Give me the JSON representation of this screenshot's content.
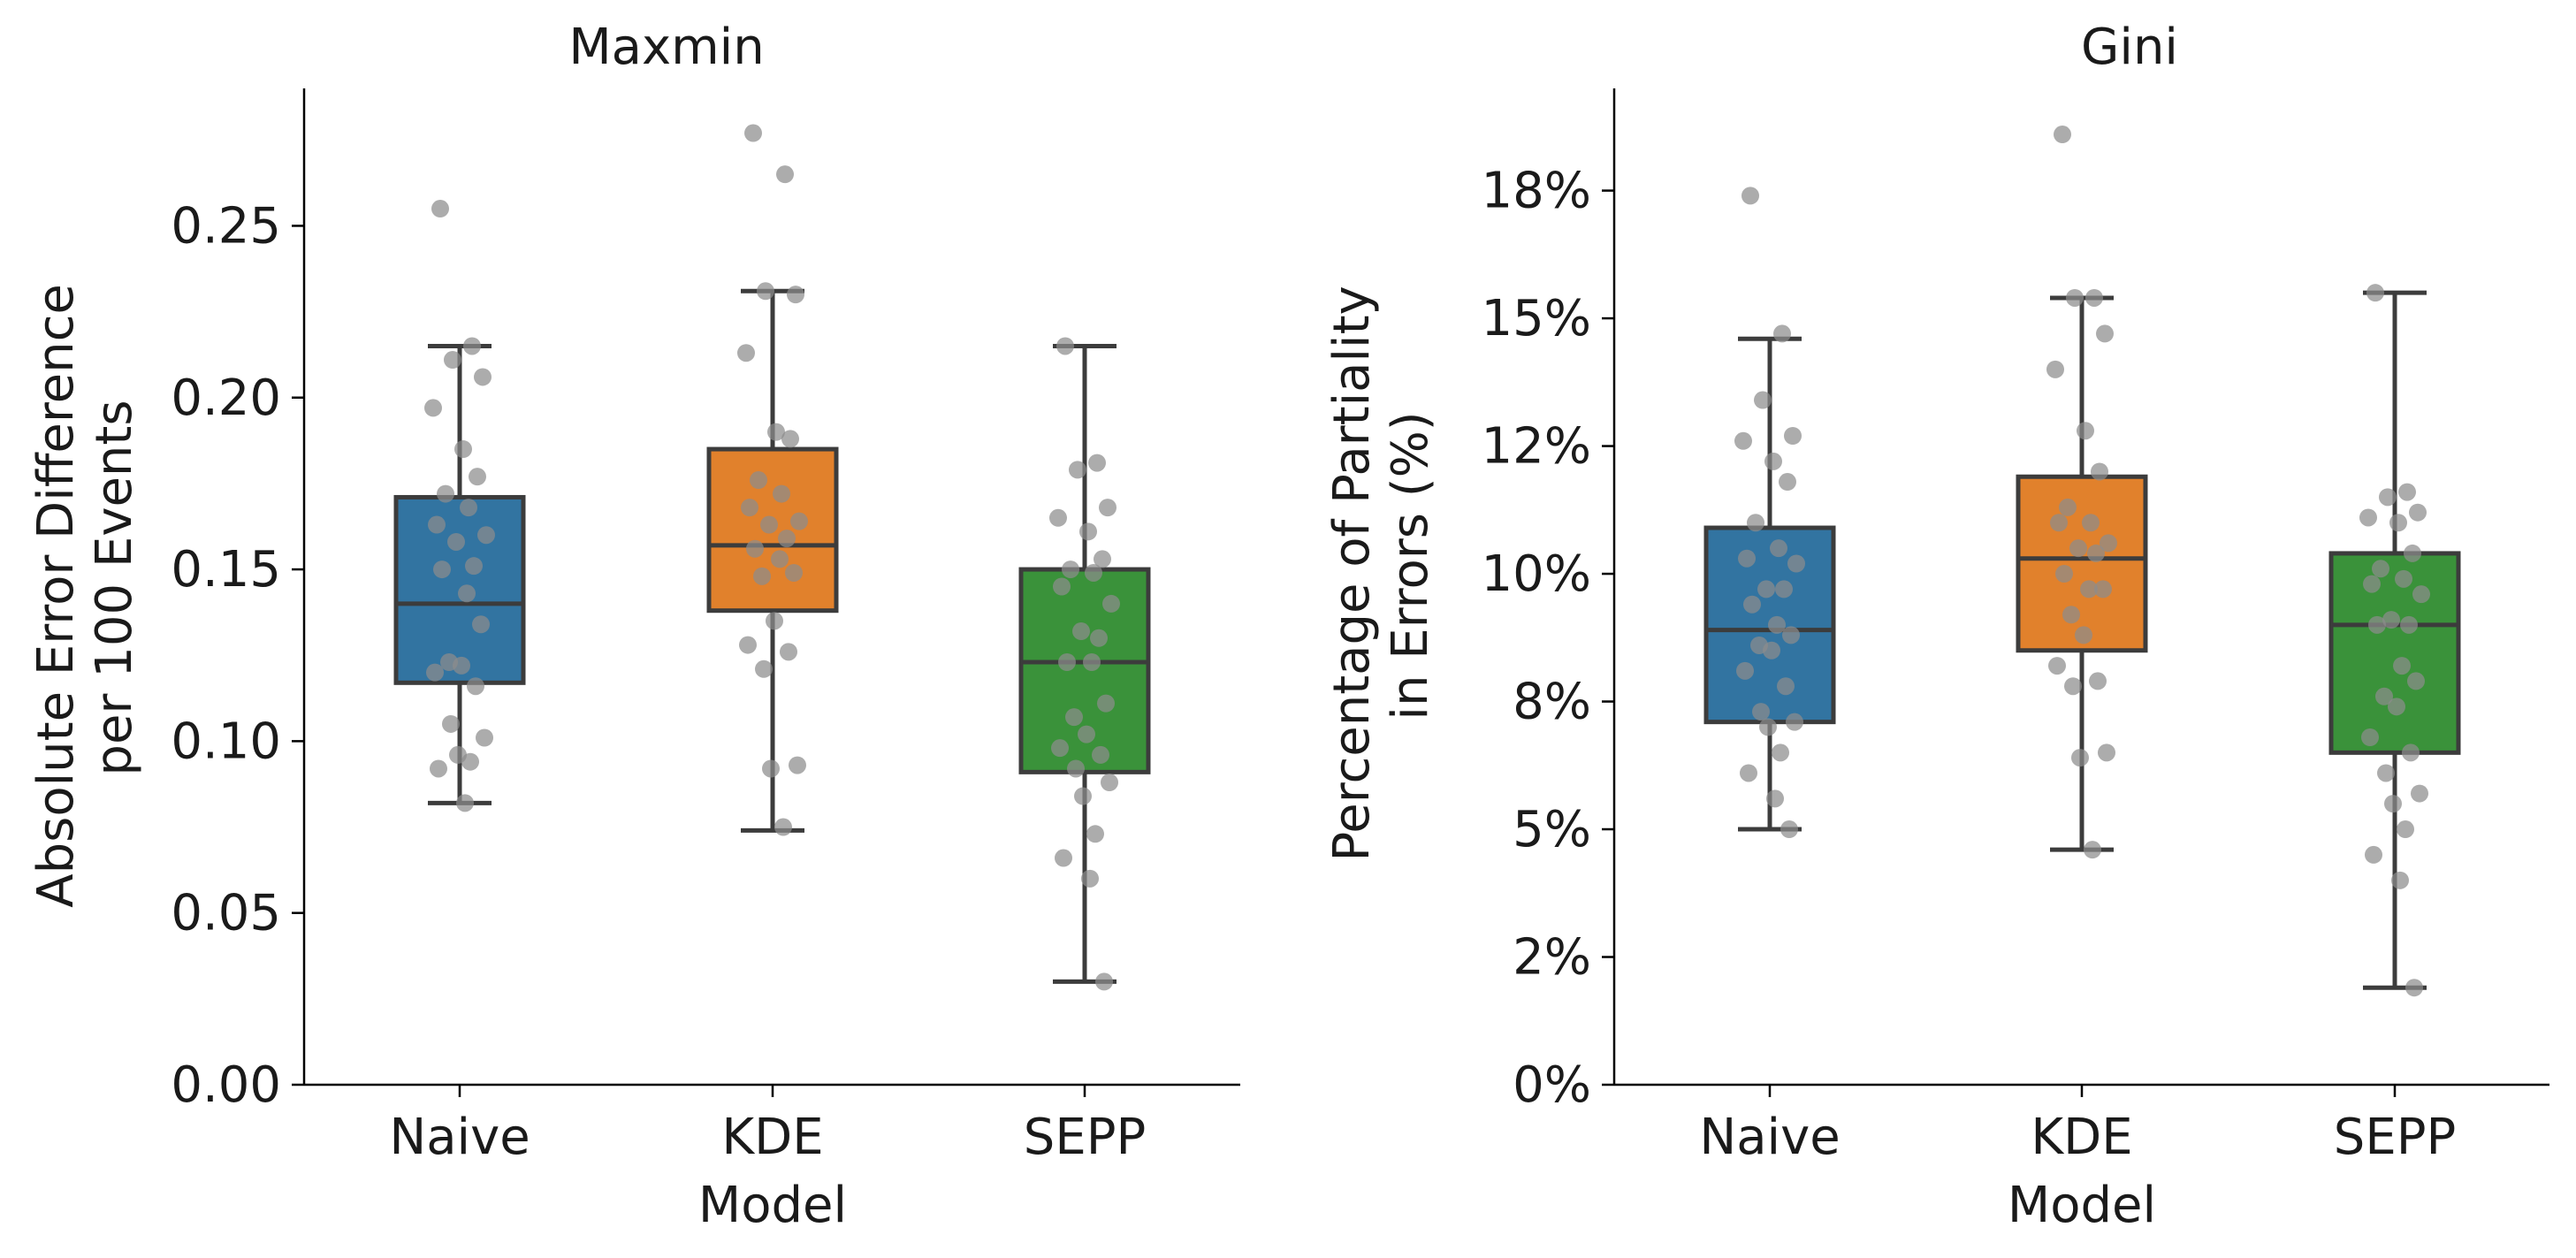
{
  "colors": {
    "naive": "#3274a1",
    "kde": "#e1812c",
    "sepp": "#3a923a",
    "outline": "#3c3c3c",
    "points": "#8c8c8c"
  },
  "chart_data": [
    {
      "type": "box",
      "title": "Maxmin",
      "xlabel": "Model",
      "ylabel_lines": [
        "Absolute Error Difference",
        "per 100 Events"
      ],
      "categories": [
        "Naive",
        "KDE",
        "SEPP"
      ],
      "ylim": [
        0,
        0.29
      ],
      "yticks": [
        0.0,
        0.05,
        0.1,
        0.15,
        0.2,
        0.25
      ],
      "ytick_labels": [
        "0.00",
        "0.05",
        "0.10",
        "0.15",
        "0.20",
        "0.25"
      ],
      "grid": false,
      "boxes": [
        {
          "category": "Naive",
          "whisker_low": 0.082,
          "q1": 0.117,
          "median": 0.14,
          "q3": 0.171,
          "whisker_high": 0.215
        },
        {
          "category": "KDE",
          "whisker_low": 0.074,
          "q1": 0.138,
          "median": 0.157,
          "q3": 0.185,
          "whisker_high": 0.231
        },
        {
          "category": "SEPP",
          "whisker_low": 0.03,
          "q1": 0.091,
          "median": 0.123,
          "q3": 0.15,
          "whisker_high": 0.215
        }
      ],
      "points": [
        [
          0.255,
          0.215,
          0.211,
          0.206,
          0.197,
          0.185,
          0.177,
          0.172,
          0.168,
          0.163,
          0.16,
          0.158,
          0.151,
          0.15,
          0.143,
          0.134,
          0.123,
          0.122,
          0.12,
          0.116,
          0.105,
          0.101,
          0.096,
          0.094,
          0.092,
          0.082
        ],
        [
          0.277,
          0.265,
          0.231,
          0.23,
          0.213,
          0.19,
          0.188,
          0.176,
          0.172,
          0.168,
          0.164,
          0.163,
          0.159,
          0.156,
          0.153,
          0.149,
          0.148,
          0.135,
          0.128,
          0.126,
          0.121,
          0.093,
          0.092,
          0.075
        ],
        [
          0.215,
          0.181,
          0.179,
          0.168,
          0.165,
          0.161,
          0.153,
          0.15,
          0.149,
          0.145,
          0.14,
          0.132,
          0.13,
          0.123,
          0.123,
          0.111,
          0.107,
          0.102,
          0.098,
          0.096,
          0.092,
          0.088,
          0.084,
          0.073,
          0.066,
          0.06,
          0.03
        ]
      ]
    },
    {
      "type": "box",
      "title": "Gini",
      "xlabel": "Model",
      "ylabel_lines": [
        "Percentage of Partiality",
        "in Errors (%)"
      ],
      "categories": [
        "Naive",
        "KDE",
        "SEPP"
      ],
      "ylim": [
        0,
        0.195
      ],
      "yticks": [
        0.0,
        0.025,
        0.05,
        0.075,
        0.1,
        0.125,
        0.15,
        0.175
      ],
      "ytick_labels": [
        "0%",
        "2%",
        "5%",
        "8%",
        "10%",
        "12%",
        "15%",
        "18%"
      ],
      "grid": false,
      "boxes": [
        {
          "category": "Naive",
          "whisker_low": 0.05,
          "q1": 0.071,
          "median": 0.089,
          "q3": 0.109,
          "whisker_high": 0.146
        },
        {
          "category": "KDE",
          "whisker_low": 0.046,
          "q1": 0.085,
          "median": 0.103,
          "q3": 0.119,
          "whisker_high": 0.154
        },
        {
          "category": "SEPP",
          "whisker_low": 0.019,
          "q1": 0.065,
          "median": 0.09,
          "q3": 0.104,
          "whisker_high": 0.155
        }
      ],
      "points": [
        [
          0.174,
          0.147,
          0.134,
          0.127,
          0.126,
          0.122,
          0.118,
          0.11,
          0.105,
          0.103,
          0.102,
          0.097,
          0.097,
          0.094,
          0.09,
          0.088,
          0.086,
          0.085,
          0.081,
          0.078,
          0.073,
          0.071,
          0.07,
          0.065,
          0.061,
          0.056,
          0.05
        ],
        [
          0.186,
          0.154,
          0.154,
          0.147,
          0.14,
          0.128,
          0.12,
          0.113,
          0.11,
          0.11,
          0.106,
          0.105,
          0.104,
          0.1,
          0.097,
          0.097,
          0.092,
          0.088,
          0.082,
          0.079,
          0.078,
          0.065,
          0.064,
          0.046
        ],
        [
          0.155,
          0.116,
          0.115,
          0.112,
          0.111,
          0.11,
          0.104,
          0.101,
          0.099,
          0.098,
          0.096,
          0.091,
          0.09,
          0.09,
          0.082,
          0.079,
          0.076,
          0.074,
          0.068,
          0.065,
          0.061,
          0.057,
          0.055,
          0.05,
          0.045,
          0.04,
          0.019
        ]
      ]
    }
  ]
}
